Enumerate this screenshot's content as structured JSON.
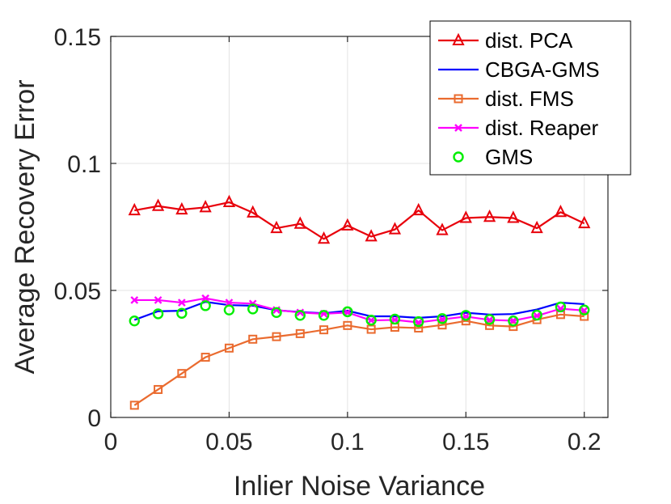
{
  "chart_data": {
    "type": "line",
    "title": "",
    "xlabel": "Inlier Noise Variance",
    "ylabel": "Average Recovery Error",
    "xlim": [
      0,
      0.21
    ],
    "ylim": [
      0,
      0.15
    ],
    "grid": true,
    "legend_position": "top-right",
    "xticks": [
      0,
      0.05,
      0.1,
      0.15,
      0.2
    ],
    "xtick_labels": [
      "0",
      "0.05",
      "0.1",
      "0.15",
      "0.2"
    ],
    "yticks": [
      0,
      0.05,
      0.1,
      0.15
    ],
    "ytick_labels": [
      "0",
      "0.05",
      "0.1",
      "0.15"
    ],
    "x": [
      0.01,
      0.02,
      0.03,
      0.04,
      0.05,
      0.06,
      0.07,
      0.08,
      0.09,
      0.1,
      0.11,
      0.12,
      0.13,
      0.14,
      0.15,
      0.16,
      0.17,
      0.18,
      0.19,
      0.2
    ],
    "series": [
      {
        "name": "dist. PCA",
        "color": "#e8000b",
        "marker": "triangle",
        "line": true,
        "values": [
          0.0815,
          0.0832,
          0.0818,
          0.0827,
          0.0847,
          0.0806,
          0.0745,
          0.0762,
          0.0703,
          0.0755,
          0.0712,
          0.074,
          0.0815,
          0.0737,
          0.0785,
          0.0789,
          0.0785,
          0.0745,
          0.0808,
          0.0764
        ]
      },
      {
        "name": "CBGA-GMS",
        "color": "#0000ff",
        "marker": "none",
        "line": true,
        "values": [
          0.0384,
          0.0418,
          0.042,
          0.0455,
          0.0442,
          0.044,
          0.0422,
          0.0415,
          0.041,
          0.042,
          0.0398,
          0.0398,
          0.0392,
          0.0398,
          0.0412,
          0.0405,
          0.0407,
          0.0425,
          0.0452,
          0.0446
        ]
      },
      {
        "name": "dist. FMS",
        "color": "#ea6b2f",
        "marker": "square",
        "line": true,
        "values": [
          0.0048,
          0.011,
          0.0173,
          0.0237,
          0.0273,
          0.0308,
          0.0318,
          0.033,
          0.0345,
          0.0362,
          0.0347,
          0.0355,
          0.0352,
          0.0364,
          0.038,
          0.0362,
          0.0358,
          0.0385,
          0.0405,
          0.0398
        ]
      },
      {
        "name": "dist. Reaper",
        "color": "#ff00ff",
        "marker": "x",
        "line": true,
        "values": [
          0.0462,
          0.0462,
          0.0452,
          0.0469,
          0.0452,
          0.0448,
          0.0423,
          0.0413,
          0.0408,
          0.0413,
          0.0382,
          0.0384,
          0.0374,
          0.0386,
          0.0397,
          0.0384,
          0.0381,
          0.04,
          0.0428,
          0.0421
        ]
      },
      {
        "name": "GMS",
        "color": "#00ee00",
        "marker": "circle",
        "line": false,
        "values": [
          0.038,
          0.0408,
          0.041,
          0.044,
          0.0423,
          0.0427,
          0.0413,
          0.0402,
          0.0402,
          0.0416,
          0.0383,
          0.0387,
          0.0377,
          0.0389,
          0.0402,
          0.0386,
          0.038,
          0.0403,
          0.0435,
          0.0423
        ]
      }
    ]
  }
}
